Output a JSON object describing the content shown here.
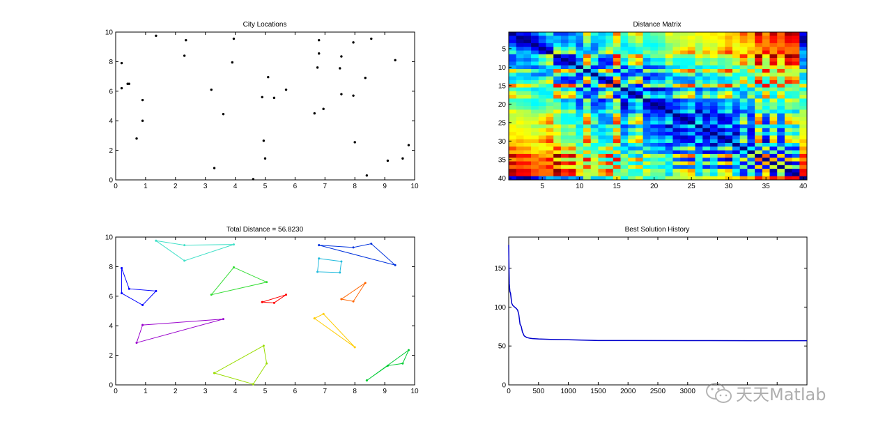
{
  "chart_data": [
    {
      "id": "cities",
      "type": "scatter",
      "title": "City Locations",
      "xlim": [
        0,
        10
      ],
      "ylim": [
        0,
        10
      ],
      "xticks": [
        0,
        1,
        2,
        3,
        4,
        5,
        6,
        7,
        8,
        9,
        10
      ],
      "yticks": [
        0,
        2,
        4,
        6,
        8,
        10
      ],
      "x": [
        0.2,
        0.2,
        0.4,
        0.9,
        0.9,
        0.7,
        1.35,
        2.3,
        2.35,
        3.2,
        3.3,
        3.6,
        3.9,
        3.95,
        4.6,
        4.9,
        4.95,
        5.0,
        5.1,
        5.3,
        5.7,
        6.65,
        6.75,
        6.8,
        6.8,
        6.95,
        7.5,
        7.55,
        7.55,
        7.95,
        7.95,
        8.0,
        8.35,
        8.4,
        8.55,
        9.1,
        9.35,
        9.6,
        9.8,
        0.45
      ],
      "y": [
        7.9,
        6.2,
        6.5,
        5.4,
        4.0,
        2.8,
        9.75,
        8.4,
        9.45,
        6.1,
        0.8,
        4.45,
        7.95,
        9.55,
        0.05,
        5.6,
        2.65,
        1.45,
        6.95,
        5.55,
        6.1,
        4.5,
        7.6,
        8.55,
        9.45,
        4.8,
        7.55,
        5.8,
        8.35,
        9.3,
        5.7,
        2.55,
        6.9,
        0.3,
        9.55,
        1.3,
        8.1,
        1.45,
        2.35,
        6.5
      ]
    },
    {
      "id": "distance",
      "type": "heatmap",
      "title": "Distance Matrix",
      "n": 40,
      "xticks": [
        5,
        10,
        15,
        20,
        25,
        30,
        35,
        40
      ],
      "yticks": [
        5,
        10,
        15,
        20,
        25,
        30,
        35,
        40
      ],
      "colormap": "jet"
    },
    {
      "id": "tours",
      "type": "line",
      "title": "Total Distance = 56.8230",
      "xlim": [
        0,
        10
      ],
      "ylim": [
        0,
        10
      ],
      "xticks": [
        0,
        1,
        2,
        3,
        4,
        5,
        6,
        7,
        8,
        9,
        10
      ],
      "yticks": [
        0,
        2,
        4,
        6,
        8,
        10
      ],
      "series": [
        {
          "color": "#0000ff",
          "x": [
            0.2,
            0.2,
            0.9,
            1.35,
            0.45,
            0.2
          ],
          "y": [
            7.9,
            6.2,
            5.4,
            6.35,
            6.5,
            7.9
          ]
        },
        {
          "color": "#40e0c8",
          "x": [
            1.35,
            2.3,
            3.95,
            2.3,
            1.35
          ],
          "y": [
            9.75,
            9.45,
            9.5,
            8.4,
            9.75
          ]
        },
        {
          "color": "#33dd33",
          "x": [
            3.95,
            5.05,
            3.2,
            3.95
          ],
          "y": [
            7.95,
            6.95,
            6.1,
            7.95
          ]
        },
        {
          "color": "#ff0000",
          "x": [
            4.9,
            5.3,
            5.7,
            4.9
          ],
          "y": [
            5.6,
            5.55,
            6.1,
            5.6
          ]
        },
        {
          "color": "#9900cc",
          "x": [
            0.9,
            3.6,
            0.7,
            0.9
          ],
          "y": [
            4.05,
            4.45,
            2.85,
            4.05
          ]
        },
        {
          "color": "#99dd00",
          "x": [
            3.3,
            4.95,
            5.05,
            4.6,
            3.3
          ],
          "y": [
            0.8,
            2.65,
            1.45,
            0.05,
            0.8
          ]
        },
        {
          "color": "#0033dd",
          "x": [
            6.8,
            7.95,
            8.55,
            9.35,
            6.8
          ],
          "y": [
            9.45,
            9.3,
            9.55,
            8.1,
            9.45
          ]
        },
        {
          "color": "#22bbdd",
          "x": [
            6.8,
            7.55,
            7.5,
            6.75,
            6.8
          ],
          "y": [
            8.55,
            8.35,
            7.6,
            7.65,
            8.55
          ]
        },
        {
          "color": "#ff6600",
          "x": [
            7.55,
            8.35,
            7.95,
            7.55
          ],
          "y": [
            5.8,
            6.9,
            5.65,
            5.8
          ]
        },
        {
          "color": "#ffcc00",
          "x": [
            6.65,
            6.95,
            8.0,
            6.65
          ],
          "y": [
            4.5,
            4.8,
            2.55,
            4.5
          ]
        },
        {
          "color": "#00cc33",
          "x": [
            8.4,
            9.8,
            9.6,
            9.1,
            8.4
          ],
          "y": [
            0.3,
            2.35,
            1.45,
            1.3,
            0.3
          ]
        }
      ]
    },
    {
      "id": "history",
      "type": "line",
      "title": "Best Solution History",
      "xlim": [
        0,
        5000
      ],
      "ylim": [
        0,
        190
      ],
      "xticks": [
        0,
        500,
        1000,
        1500,
        2000,
        2500,
        3000,
        3500,
        4000,
        4500,
        5000
      ],
      "xticklabels": [
        "0",
        "500",
        "1000",
        "1500",
        "2000",
        "2500",
        "3000",
        "",
        "",
        "",
        ""
      ],
      "yticks": [
        0,
        50,
        100,
        150
      ],
      "series": [
        {
          "color": "#0000cc",
          "x": [
            0,
            5,
            10,
            20,
            30,
            50,
            70,
            100,
            130,
            150,
            170,
            190,
            210,
            230,
            260,
            300,
            350,
            400,
            500,
            700,
            1000,
            1500,
            2000,
            3000,
            4000,
            5000
          ],
          "y": [
            180,
            150,
            130,
            120,
            118,
            105,
            102,
            100,
            98,
            96,
            90,
            78,
            75,
            68,
            63,
            61,
            60,
            59.5,
            59,
            58.5,
            58,
            57,
            57,
            56.9,
            56.85,
            56.8
          ]
        }
      ]
    }
  ],
  "watermark": {
    "text": "天天Matlab",
    "icon": "wechat-icon"
  }
}
